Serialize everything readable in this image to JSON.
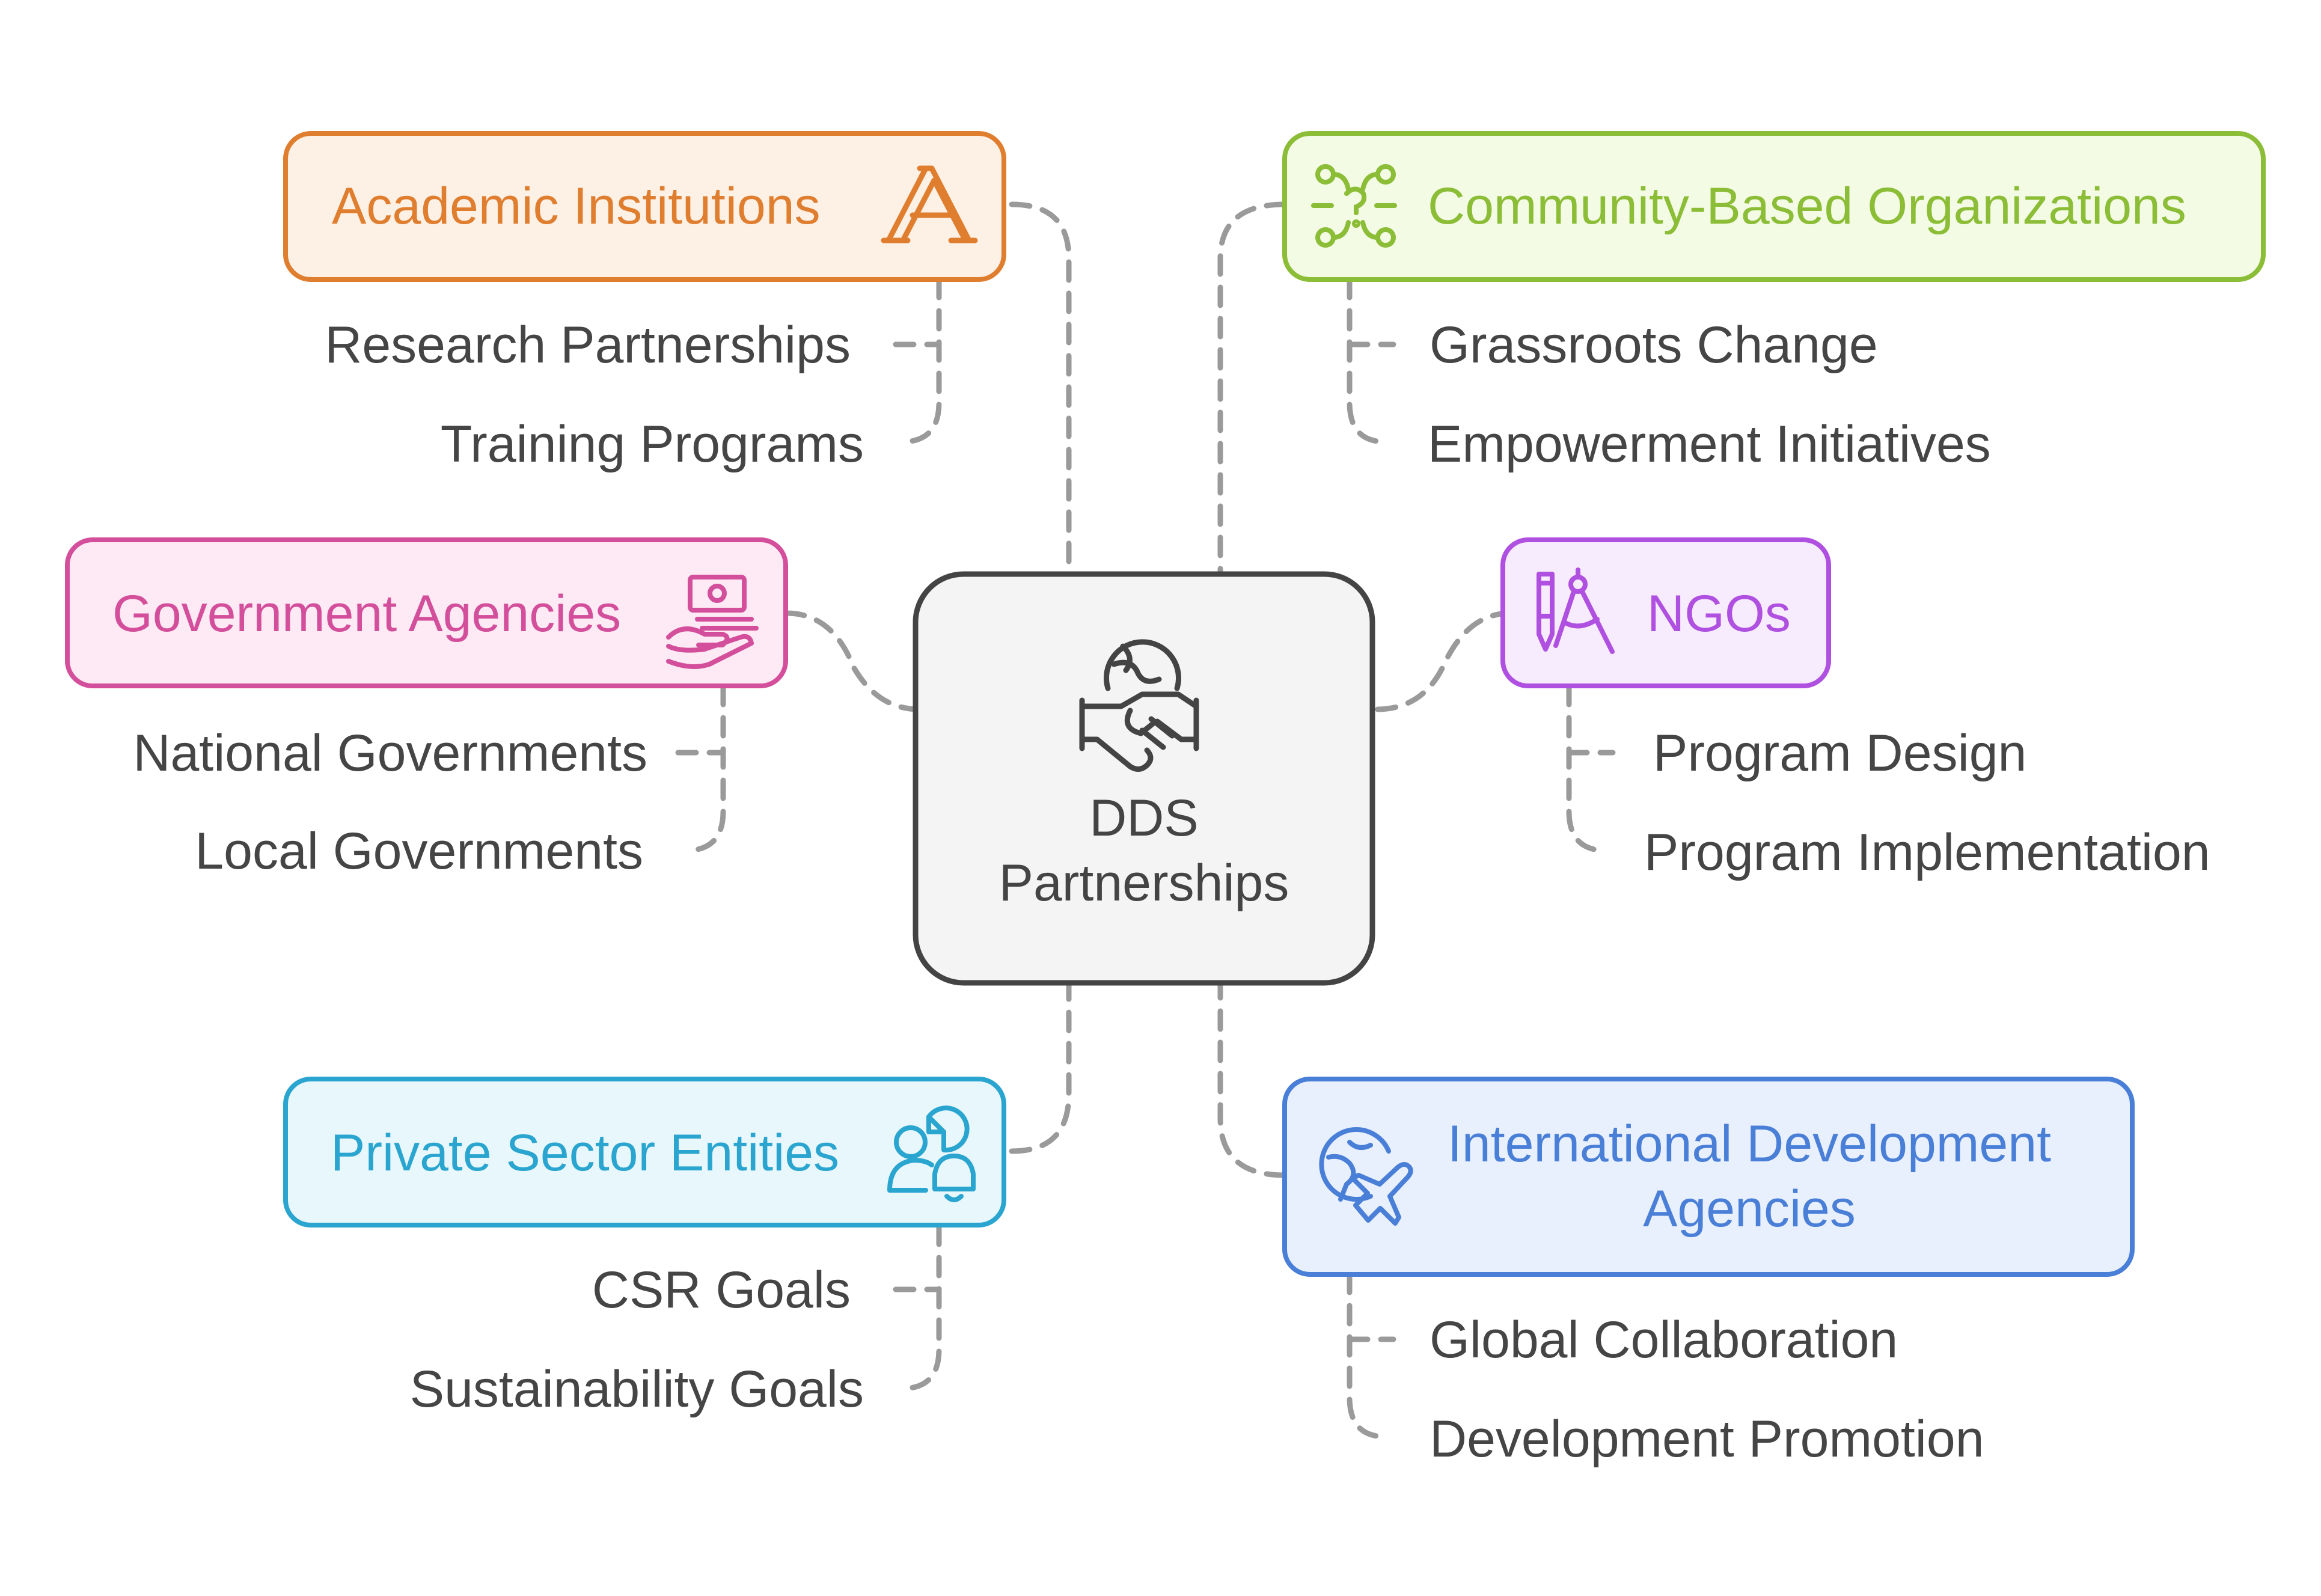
{
  "center": {
    "line1": "DDS",
    "line2": "Partnerships"
  },
  "nodes": {
    "academic": {
      "label": "Academic Institutions",
      "icon": "letter-a-icon",
      "color": "#e07e30",
      "fill": "#fdf0e4",
      "items": [
        "Research Partnerships",
        "Training Programs"
      ]
    },
    "community": {
      "label": "Community-Based Organizations",
      "icon": "network-nodes-icon",
      "color": "#8cbd37",
      "fill": "#f3fbe4",
      "items": [
        "Grassroots Change",
        "Empowerment Initiatives"
      ]
    },
    "government": {
      "label": "Government Agencies",
      "icon": "money-hand-icon",
      "color": "#d44f9b",
      "fill": "#fdeaf4",
      "items": [
        "National Governments",
        "Local Governments"
      ]
    },
    "ngos": {
      "label": "NGOs",
      "icon": "drafting-tools-icon",
      "color": "#b050e0",
      "fill": "#f7ecfd",
      "items": [
        "Program Design",
        "Program Implementation"
      ]
    },
    "private": {
      "label": "Private Sector Entities",
      "icon": "user-chart-bell-icon",
      "color": "#2aa5cf",
      "fill": "#e8f7fc",
      "items": [
        "CSR Goals",
        "Sustainability Goals"
      ]
    },
    "international": {
      "line1": "International Development",
      "line2": "Agencies",
      "icon": "globe-plane-icon",
      "color": "#4a7fd8",
      "fill": "#e9f0fd",
      "items": [
        "Global Collaboration",
        "Development Promotion"
      ]
    }
  }
}
